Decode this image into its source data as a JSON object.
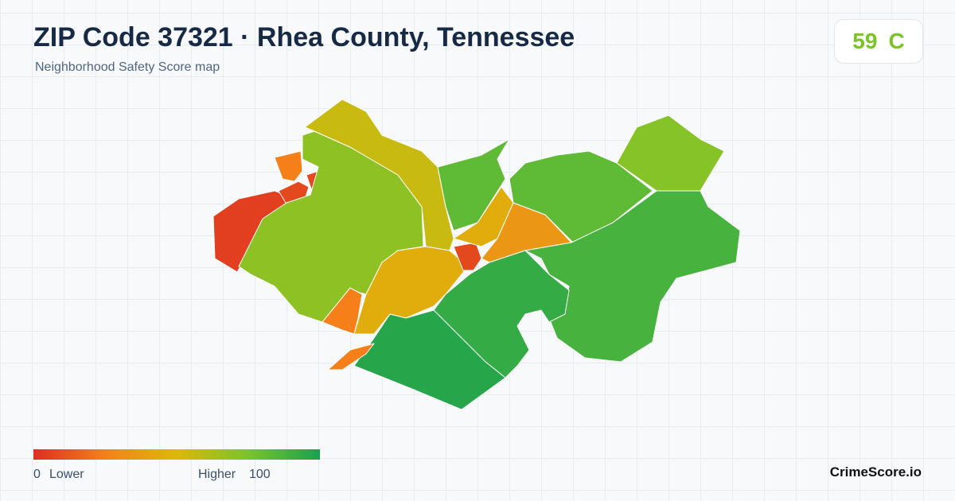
{
  "header": {
    "title": "ZIP Code 37321 · Rhea County, Tennessee",
    "subtitle": "Neighborhood Safety Score map"
  },
  "score": {
    "value": 59,
    "grade": "C"
  },
  "legend": {
    "min": 0,
    "min_label": "Lower",
    "max_label": "Higher",
    "max": 100,
    "colors": [
      "#dc2f20",
      "#f5801a",
      "#dcb80a",
      "#7ac42a",
      "#1aa150"
    ]
  },
  "brand": "CrimeScore.io",
  "regions": [
    {
      "score": 5
    },
    {
      "score": 25
    },
    {
      "score": 8
    },
    {
      "score": 70
    },
    {
      "score": 55
    },
    {
      "score": 25
    },
    {
      "score": 45
    },
    {
      "score": 8
    },
    {
      "score": 45
    },
    {
      "score": 35
    },
    {
      "score": 82
    },
    {
      "score": 82
    },
    {
      "score": 72
    },
    {
      "score": 88
    },
    {
      "score": 93
    },
    {
      "score": 97
    },
    {
      "score": 25
    }
  ]
}
